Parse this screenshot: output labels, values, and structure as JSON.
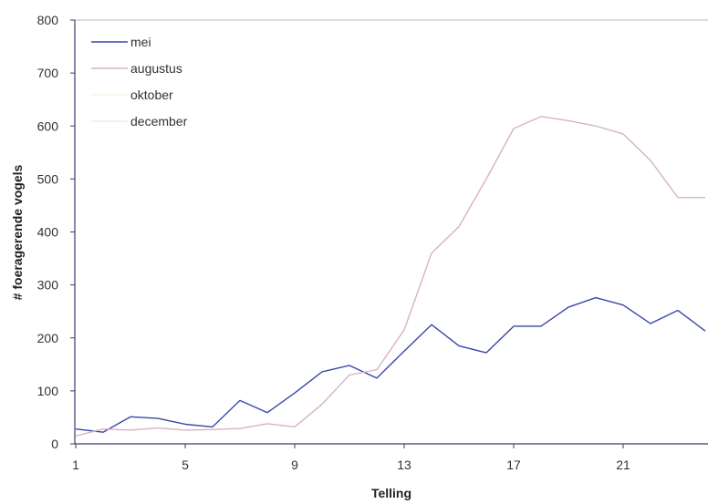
{
  "chart_data": {
    "type": "line",
    "xlabel": "Telling",
    "ylabel": "# foeragerende vogels",
    "ylim": [
      0,
      800
    ],
    "yticks": [
      "0",
      "100",
      "200",
      "300",
      "400",
      "500",
      "600",
      "700",
      "800"
    ],
    "xticks": [
      "1",
      "5",
      "9",
      "13",
      "17",
      "21"
    ],
    "legend_position": "top-left",
    "grid": false,
    "series": [
      {
        "name": "mei",
        "color": "#3a47a8",
        "x": [
          1,
          2,
          3,
          4,
          5,
          6,
          7,
          8,
          9,
          10,
          11,
          12,
          13,
          14,
          15,
          16,
          17,
          18,
          19,
          20,
          21,
          22,
          23,
          24
        ],
        "values": [
          28,
          22,
          51,
          48,
          37,
          32,
          82,
          59,
          96,
          136,
          148,
          124,
          175,
          225,
          185,
          172,
          222,
          222,
          258,
          276,
          262,
          227,
          252,
          213
        ]
      },
      {
        "name": "augustus",
        "color": "#d7b2c7",
        "x": [
          1,
          2,
          3,
          4,
          5,
          6,
          7,
          8,
          9,
          10,
          11,
          12,
          13,
          14,
          15,
          16,
          17,
          18,
          19,
          20,
          21,
          22,
          23,
          24
        ],
        "values": [
          15,
          28,
          26,
          30,
          26,
          27,
          29,
          38,
          32,
          75,
          130,
          140,
          215,
          360,
          410,
          500,
          595,
          618,
          610,
          600,
          585,
          535,
          465,
          465
        ]
      },
      {
        "name": "oktober",
        "color": "#f5f5e6",
        "x": [],
        "values": []
      },
      {
        "name": "december",
        "color": "#e6f2ee",
        "x": [],
        "values": []
      }
    ]
  }
}
